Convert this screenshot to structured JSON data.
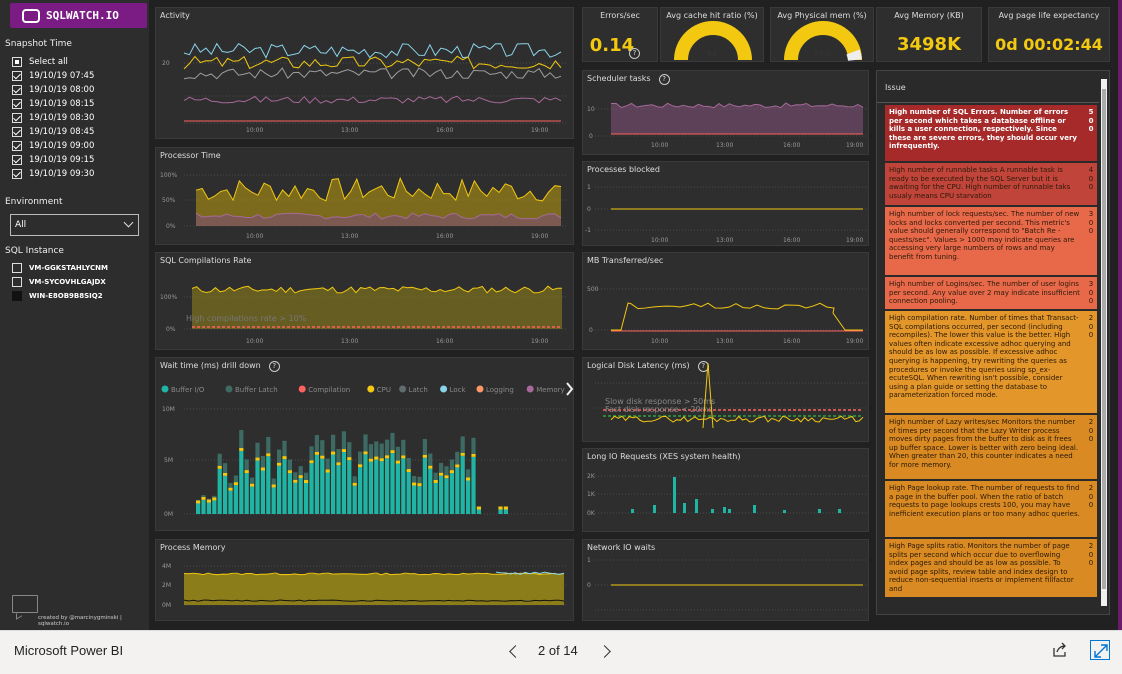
{
  "app": {
    "brand": "Microsoft Power BI",
    "page": "2 of 14",
    "logo": "SQLWATCH.IO"
  },
  "sidebar": {
    "snapshot_title": "Snapshot Time",
    "select_all": "Select all",
    "times": [
      "19/10/19 07:45",
      "19/10/19 08:00",
      "19/10/19 08:15",
      "19/10/19 08:30",
      "19/10/19 08:45",
      "19/10/19 09:00",
      "19/10/19 09:15",
      "19/10/19 09:30"
    ],
    "environment_title": "Environment",
    "environment_value": "All",
    "instance_title": "SQL Instance",
    "instances": [
      "VM-GGKSTAHLYCNM",
      "VM-SYCOVHLGAJDX",
      "WIN-E8OB9B8SIQ2"
    ],
    "credit": "created by @marcinygminski | sqlwatch.io"
  },
  "panels": {
    "activity": "Activity",
    "processor": "Processor Time",
    "compilations": "SQL Compilations Rate",
    "compilations_annot": "High compilations rate > 10%",
    "waits": "Wait time (ms) drill down",
    "process_memory": "Process Memory",
    "scheduler": "Scheduler tasks",
    "blocked": "Processes blocked",
    "mb_transferred": "MB Transferred/sec",
    "disk_latency": "Logical Disk Latency (ms)",
    "disk_annot1": "Slow disk response > 50ms",
    "disk_annot2": "Fast disk response < 20ms",
    "long_io": "Long IO Requests (XES system health)",
    "network": "Network IO waits"
  },
  "wait_legend": [
    "Buffer I/O",
    "Buffer Latch",
    "Compilation",
    "CPU",
    "Latch",
    "Lock",
    "Logging",
    "Memory"
  ],
  "wait_colors": [
    "#1fb4a4",
    "#3d6b63",
    "#fd625e",
    "#f2c811",
    "#5f6b6d",
    "#8ad4eb",
    "#fe9666",
    "#a66999"
  ],
  "kpi": {
    "errors_title": "Errors/sec",
    "errors_value": "0.14",
    "cache_title": "Avg cache hit ratio (%)",
    "cache_value": "99",
    "physmem_title": "Avg Physical mem (%)",
    "physmem_value": "94%",
    "memory_title": "Avg Memory (KB)",
    "memory_value": "3498K",
    "ple_title": "Avg page life expectancy",
    "ple_value": "0d 00:02:44"
  },
  "axis": {
    "t1": "10:00",
    "t2": "13:00",
    "t3": "16:00",
    "t4": "19:00",
    "activity_y": "20",
    "pct100": "100%",
    "pct50": "50%",
    "pct0": "0%",
    "wait_10m": "10M",
    "wait_5m": "5M",
    "wait_0m": "0M",
    "mem_4m": "4M",
    "mem_2m": "2M",
    "mem_0m": "0M",
    "sched_10": "10",
    "sched_0": "0",
    "blk_1": "1",
    "blk_0": "0",
    "blk_m1": "-1",
    "mb_500": "500",
    "mb_0": "0",
    "lio_2k": "2K",
    "lio_1k": "1K",
    "lio_0k": "0K"
  },
  "issues": {
    "header": "Issue",
    "rows": [
      {
        "text": "High number of SQL Errors. Number of errors per second which takes a database offline or kills a user connection, respectively. Since these are severe errors, they should occur very infrequently.",
        "count": "500",
        "bg": "#a62a2a"
      },
      {
        "text": "High number of runnable tasks A runnable task is ready to be executed by the SQL Server but it is awaiting for the CPU. High number of runnable taks usualy means CPU starvation",
        "count": "400",
        "bg": "#c0443a"
      },
      {
        "text": "High number of lock requests/sec. The number of new locks and locks converted per second. This metric's value should generally correspond to \"Batch Re - quests/sec\". Values > 1000 may indicate queries are accessing very large numbers of rows and may benefit from tuning.",
        "count": "300",
        "bg": "#e8694a"
      },
      {
        "text": "High number of Logins/sec. The number of user logins per second. Any value over 2 may indicate insufficient connection pooling.",
        "count": "300",
        "bg": "#e8694a"
      },
      {
        "text": "High compilation rate. Number of times that Transact-SQL compilations occurred, per second (including recompiles). The lower this value is the better. High values often indicate excessive adhoc querying and should be as low as possible. If excessive adhoc querying is happening, try rewriting the queries as procedures or invoke the queries using sp_ex- ecuteSQL. When rewriting isn't possible, consider using a plan guide or setting the database to parameterization forced mode.",
        "count": "200",
        "bg": "#e3962a"
      },
      {
        "text": "High number of Lazy writes/sec Monitors the number of times per second that the Lazy Writer process moves dirty pages from the buffer to disk as it frees up buffer space. Lower is better with zero being ideal. When greater than 20, this counter indicates a need for more memory.",
        "count": "200",
        "bg": "#d98a22"
      },
      {
        "text": "High Page lookup rate. The number of requests to find a page in the buffer pool. When the ratio of batch requests to page lookups crests 100, you may have inefficient execution plans or too many adhoc queries.",
        "count": "200",
        "bg": "#d98a22"
      },
      {
        "text": "High Page splits ratio. Monitors the number of page splits per second which occur due to overflowing index pages and should be as low as possible. To avoid page splits, review table and index design to reduce non-sequential inserts or implement fillfactor and",
        "count": "200",
        "bg": "#d98a22"
      }
    ]
  }
}
